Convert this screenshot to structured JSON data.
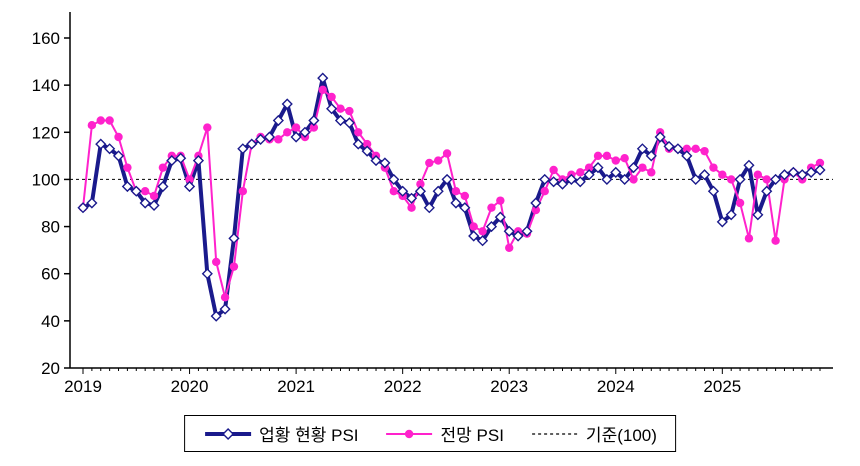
{
  "chart_data": {
    "type": "line",
    "title": "",
    "x_tick_labels": [
      "2019",
      "2020",
      "2021",
      "2022",
      "2023",
      "2024",
      "2025"
    ],
    "x_frequency": "monthly",
    "x_range": "2019-01 to 2025-12",
    "ylim": [
      20,
      160
    ],
    "y_ticks": [
      20,
      40,
      60,
      80,
      100,
      120,
      140,
      160
    ],
    "baseline": 100,
    "grid": false,
    "legend_position": "bottom",
    "legend": [
      "업황 현황 PSI",
      "전망 PSI",
      "기준(100)"
    ],
    "colors": {
      "current": "#1a1a8c",
      "forecast": "#ff22cc",
      "baseline": "#000000"
    },
    "series": [
      {
        "name": "업황 현황 PSI",
        "marker": "open-diamond",
        "color": "#1a1a8c",
        "values": [
          88,
          90,
          115,
          113,
          110,
          97,
          95,
          90,
          89,
          97,
          108,
          109,
          97,
          108,
          60,
          42,
          45,
          75,
          113,
          115,
          117,
          118,
          125,
          132,
          118,
          120,
          125,
          143,
          130,
          125,
          124,
          115,
          112,
          108,
          107,
          100,
          95,
          92,
          95,
          88,
          95,
          100,
          90,
          88,
          76,
          74,
          80,
          84,
          78,
          76,
          78,
          90,
          100,
          99,
          98,
          100,
          99,
          102,
          105,
          100,
          103,
          100,
          105,
          113,
          110,
          118,
          114,
          113,
          110,
          100,
          102,
          95,
          82,
          85,
          100,
          106,
          85,
          95,
          100,
          102,
          103,
          102,
          103,
          104
        ]
      },
      {
        "name": "전망 PSI",
        "marker": "filled-circle",
        "color": "#ff22cc",
        "values": [
          88,
          123,
          125,
          125,
          118,
          105,
          95,
          95,
          93,
          105,
          110,
          110,
          100,
          110,
          122,
          65,
          50,
          63,
          95,
          115,
          118,
          117,
          117,
          120,
          122,
          118,
          122,
          138,
          135,
          130,
          129,
          120,
          115,
          110,
          105,
          95,
          93,
          88,
          98,
          107,
          108,
          111,
          95,
          93,
          80,
          78,
          88,
          91,
          71,
          78,
          77,
          87,
          95,
          104,
          100,
          102,
          103,
          105,
          110,
          110,
          108,
          109,
          100,
          105,
          103,
          120,
          113,
          113,
          113,
          113,
          112,
          105,
          102,
          100,
          90,
          75,
          102,
          100,
          74,
          100,
          103,
          100,
          105,
          107
        ]
      }
    ]
  }
}
